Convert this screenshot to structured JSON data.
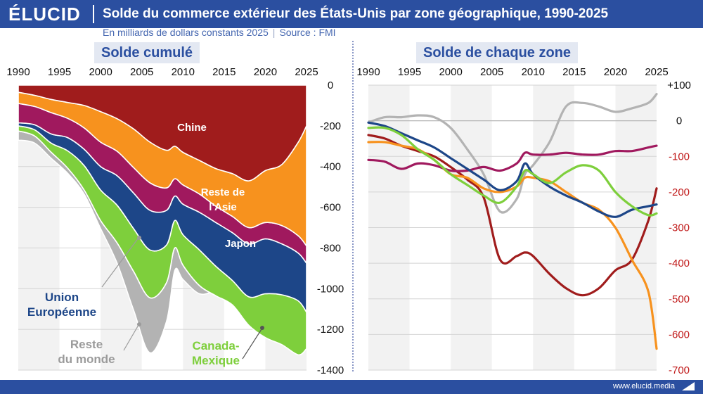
{
  "header": {
    "brand": "ÉLUCID",
    "title": "Solde du commerce extérieur des États-Unis par zone géographique, 1990-2025",
    "subtitle_units": "En milliards de dollars constants 2025",
    "subtitle_source": "Source : FMI"
  },
  "footer": {
    "url": "www.elucid.media"
  },
  "colors": {
    "chine": "#a01c1c",
    "asie": "#f7921e",
    "japon": "#a0195e",
    "ue": "#1d4688",
    "canada": "#7ecf3c",
    "monde": "#b3b3b3",
    "brand_blue": "#2b4fa0"
  },
  "chart_data": [
    {
      "type": "area",
      "stacked": true,
      "title": "Solde cumulé",
      "xlim": [
        1990,
        2025
      ],
      "ylim": [
        -1400,
        0
      ],
      "x_ticks": [
        "1990",
        "1995",
        "2000",
        "2005",
        "2010",
        "2015",
        "2020",
        "2025"
      ],
      "y_ticks": [
        "0",
        "-200",
        "-400",
        "-600",
        "-800",
        "-1000",
        "-1200",
        "-1400"
      ],
      "x": [
        1990,
        1992,
        1994,
        1996,
        1998,
        2000,
        2002,
        2004,
        2006,
        2008,
        2009,
        2010,
        2012,
        2014,
        2016,
        2018,
        2020,
        2022,
        2024,
        2025
      ],
      "series": [
        {
          "name": "Chine",
          "key": "chine",
          "values": [
            -35,
            -50,
            -70,
            -85,
            -100,
            -130,
            -165,
            -215,
            -280,
            -320,
            -300,
            -330,
            -370,
            -410,
            -435,
            -470,
            -420,
            -390,
            -280,
            -200
          ]
        },
        {
          "name": "Reste de l'Asie",
          "key": "asie",
          "values": [
            -55,
            -55,
            -65,
            -78,
            -110,
            -150,
            -160,
            -190,
            -200,
            -185,
            -160,
            -160,
            -165,
            -185,
            -210,
            -230,
            -255,
            -300,
            -460,
            -590
          ]
        },
        {
          "name": "Japon",
          "key": "japon",
          "values": [
            -95,
            -90,
            -105,
            -95,
            -105,
            -120,
            -120,
            -125,
            -135,
            -110,
            -85,
            -95,
            -90,
            -80,
            -80,
            -80,
            -80,
            -90,
            -85,
            -85
          ]
        },
        {
          "name": "Union Européenne",
          "key": "ue",
          "values": [
            -15,
            -25,
            -45,
            -65,
            -80,
            -115,
            -145,
            -175,
            -195,
            -170,
            -120,
            -150,
            -185,
            -215,
            -235,
            -260,
            -270,
            -250,
            -235,
            -240
          ]
        },
        {
          "name": "Canada-Mexique",
          "key": "canada",
          "values": [
            -25,
            -30,
            -45,
            -85,
            -120,
            -150,
            -185,
            -210,
            -235,
            -185,
            -135,
            -150,
            -175,
            -145,
            -120,
            -140,
            -215,
            -245,
            -265,
            -180
          ]
        },
        {
          "name": "Reste du monde",
          "key": "monde",
          "values": [
            -45,
            -35,
            -30,
            -25,
            -20,
            -40,
            -100,
            -190,
            -270,
            -190,
            -110,
            -70,
            -40,
            20,
            50,
            40,
            30,
            50,
            90,
            80
          ]
        }
      ],
      "annotations": [
        {
          "text": "Chine",
          "series": "chine"
        },
        {
          "text": "Reste de l'Asie",
          "series": "asie"
        },
        {
          "text": "Japon",
          "series": "japon"
        },
        {
          "text": "Union Européenne",
          "series": "ue"
        },
        {
          "text": "Reste du monde",
          "series": "monde"
        },
        {
          "text": "Canada-Mexique",
          "series": "canada"
        }
      ]
    },
    {
      "type": "line",
      "title": "Solde de chaque zone",
      "xlim": [
        1990,
        2025
      ],
      "ylim": [
        -700,
        100
      ],
      "x_ticks": [
        "1990",
        "1995",
        "2000",
        "2005",
        "2010",
        "2015",
        "2020",
        "2025"
      ],
      "y_ticks": [
        "+100",
        "0",
        "-100",
        "-200",
        "-300",
        "-400",
        "-500",
        "-600",
        "-700"
      ],
      "x": [
        1990,
        1992,
        1994,
        1996,
        1998,
        2000,
        2002,
        2004,
        2006,
        2008,
        2009,
        2010,
        2012,
        2014,
        2016,
        2018,
        2020,
        2022,
        2024,
        2025
      ],
      "series": [
        {
          "key": "monde",
          "values": [
            -5,
            10,
            10,
            15,
            10,
            -20,
            -80,
            -150,
            -255,
            -220,
            -150,
            -125,
            -60,
            40,
            50,
            40,
            25,
            35,
            50,
            75
          ]
        },
        {
          "key": "chine",
          "values": [
            -40,
            -50,
            -70,
            -85,
            -100,
            -130,
            -165,
            -215,
            -390,
            -380,
            -370,
            -380,
            -430,
            -470,
            -490,
            -470,
            -420,
            -390,
            -280,
            -190
          ]
        },
        {
          "key": "asie",
          "values": [
            -60,
            -60,
            -70,
            -80,
            -110,
            -150,
            -160,
            -190,
            -200,
            -185,
            -160,
            -160,
            -170,
            -200,
            -230,
            -250,
            -300,
            -390,
            -480,
            -640
          ]
        },
        {
          "key": "japon",
          "values": [
            -110,
            -115,
            -135,
            -120,
            -125,
            -140,
            -140,
            -130,
            -140,
            -120,
            -90,
            -95,
            -95,
            -90,
            -95,
            -95,
            -85,
            -85,
            -75,
            -70
          ]
        },
        {
          "key": "ue",
          "values": [
            -5,
            -15,
            -35,
            -55,
            -75,
            -105,
            -135,
            -165,
            -195,
            -170,
            -120,
            -150,
            -185,
            -210,
            -230,
            -255,
            -270,
            -250,
            -240,
            -235
          ]
        },
        {
          "key": "canada",
          "values": [
            -20,
            -20,
            -40,
            -80,
            -110,
            -150,
            -180,
            -210,
            -230,
            -185,
            -140,
            -150,
            -175,
            -145,
            -125,
            -140,
            -200,
            -240,
            -265,
            -260
          ]
        }
      ]
    }
  ]
}
